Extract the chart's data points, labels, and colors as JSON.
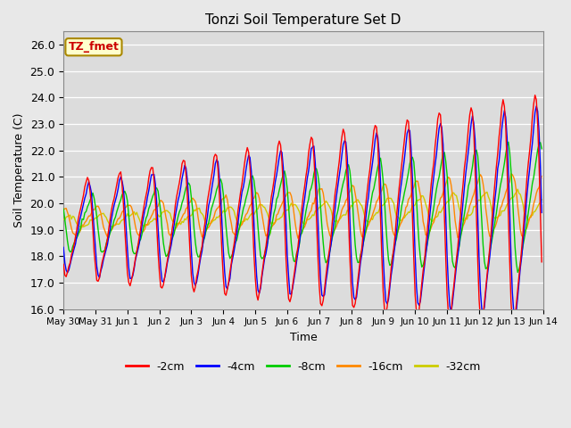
{
  "title": "Tonzi Soil Temperature Set D",
  "xlabel": "Time",
  "ylabel": "Soil Temperature (C)",
  "annotation": "TZ_fmet",
  "ylim": [
    16.0,
    26.5
  ],
  "yticks": [
    16.0,
    17.0,
    18.0,
    19.0,
    20.0,
    21.0,
    22.0,
    23.0,
    24.0,
    25.0,
    26.0
  ],
  "series_colors": [
    "#ff0000",
    "#0000ff",
    "#00cc00",
    "#ff8800",
    "#cccc00"
  ],
  "series_labels": [
    "-2cm",
    "-4cm",
    "-8cm",
    "-16cm",
    "-32cm"
  ],
  "bg_color": "#dcdcdc",
  "fig_bg": "#e8e8e8",
  "tick_labels": [
    "May 30",
    "May 31",
    "Jun 1",
    "Jun 2",
    "Jun 3",
    "Jun 4",
    "Jun 5",
    "Jun 6",
    "Jun 7",
    "Jun 8",
    "Jun 9",
    "Jun 10",
    "Jun 11",
    "Jun 12",
    "Jun 13",
    "Jun 14"
  ]
}
